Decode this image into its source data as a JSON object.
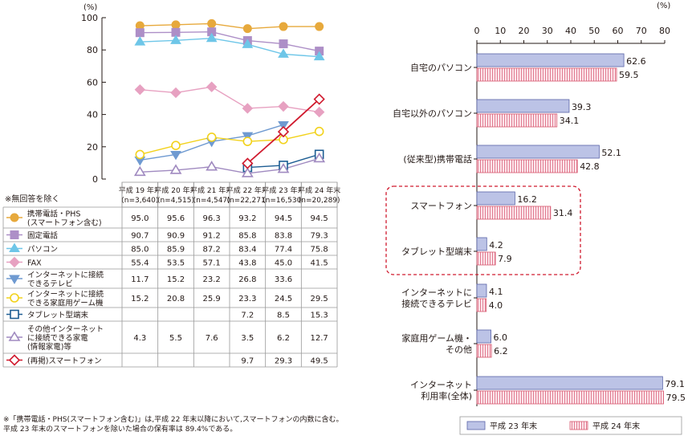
{
  "chart_data": [
    {
      "type": "line",
      "ylabel": "(%)",
      "ylim": [
        0,
        100
      ],
      "yticks": [
        0,
        20,
        40,
        60,
        80,
        100
      ],
      "categories": [
        "平成 19 年末",
        "平成 20 年末",
        "平成 21 年末",
        "平成 22 年末",
        "平成 23 年末",
        "平成 24 年末"
      ],
      "category_notes": [
        "(n=3,640)",
        "(n=4,515)",
        "(n=4,547)",
        "(n=22,271)",
        "(n=16,530)",
        "(n=20,289)"
      ],
      "note": "※無回答を除く",
      "grid": false,
      "series": [
        {
          "name": "携帯電話・PHS",
          "name2": "(スマートフォン含む)",
          "color": "#e7a93c",
          "marker": "circle-filled",
          "values": [
            95.0,
            95.6,
            96.3,
            93.2,
            94.5,
            94.5
          ],
          "labels": [
            "95.0",
            "95.6",
            "96.3",
            "93.2",
            "94.5",
            "94.5"
          ]
        },
        {
          "name": "固定電話",
          "color": "#ad8fc7",
          "marker": "square-filled",
          "values": [
            90.7,
            90.9,
            91.2,
            85.8,
            83.8,
            79.3
          ],
          "labels": [
            "90.7",
            "90.9",
            "91.2",
            "85.8",
            "83.8",
            "79.3"
          ]
        },
        {
          "name": "パソコン",
          "color": "#6ec6e8",
          "marker": "triangle-up-filled",
          "values": [
            85.0,
            85.9,
            87.2,
            83.4,
            77.4,
            75.8
          ],
          "labels": [
            "85.0",
            "85.9",
            "87.2",
            "83.4",
            "77.4",
            "75.8"
          ]
        },
        {
          "name": "FAX",
          "color": "#e7a1c1",
          "marker": "diamond-filled",
          "values": [
            55.4,
            53.5,
            57.1,
            43.8,
            45.0,
            41.5
          ],
          "labels": [
            "55.4",
            "53.5",
            "57.1",
            "43.8",
            "45.0",
            "41.5"
          ]
        },
        {
          "name": "インターネットに接続",
          "name2": "できるテレビ",
          "color": "#6f9ad1",
          "marker": "triangle-down-filled",
          "values": [
            11.7,
            15.2,
            23.2,
            26.8,
            33.6,
            null
          ],
          "labels": [
            "11.7",
            "15.2",
            "23.2",
            "26.8",
            "33.6",
            ""
          ]
        },
        {
          "name": "インターネットに接続",
          "name2": "できる家庭用ゲーム機",
          "color": "#f2d21c",
          "marker": "circle-open",
          "values": [
            15.2,
            20.8,
            25.9,
            23.3,
            24.5,
            29.5
          ],
          "labels": [
            "15.2",
            "20.8",
            "25.9",
            "23.3",
            "24.5",
            "29.5"
          ]
        },
        {
          "name": "タブレット型端末",
          "color": "#1d5d93",
          "marker": "square-open",
          "values": [
            null,
            null,
            null,
            7.2,
            8.5,
            15.3
          ],
          "labels": [
            "",
            "",
            "",
            "7.2",
            "8.5",
            "15.3"
          ]
        },
        {
          "name": "その他インターネット",
          "name2": "に接続できる家電",
          "name3": "(情報家電)等",
          "color": "#a08ac0",
          "marker": "triangle-up-open",
          "values": [
            4.3,
            5.5,
            7.6,
            3.5,
            6.2,
            12.7
          ],
          "labels": [
            "4.3",
            "5.5",
            "7.6",
            "3.5",
            "6.2",
            "12.7"
          ]
        },
        {
          "name": "(再掲)スマートフォン",
          "color": "#d01a2e",
          "marker": "diamond-open",
          "values": [
            null,
            null,
            null,
            9.7,
            29.3,
            49.5
          ],
          "labels": [
            "",
            "",
            "",
            "9.7",
            "29.3",
            "49.5"
          ]
        }
      ]
    },
    {
      "type": "bar",
      "orientation": "horizontal",
      "xlabel": "(%)",
      "xlim": [
        0,
        80
      ],
      "xticks": [
        0,
        10,
        20,
        30,
        40,
        50,
        60,
        70,
        80
      ],
      "legend_position": "bottom",
      "categories": [
        [
          "自宅のパソコン"
        ],
        [
          "自宅以外のパソコン"
        ],
        [
          "(従来型)携帯電話"
        ],
        [
          "スマートフォン"
        ],
        [
          "タブレット型端末"
        ],
        [
          "インターネットに",
          "接続できるテレビ"
        ],
        [
          "家庭用ゲーム機・",
          "その他"
        ],
        [
          "インターネット",
          "利用率(全体)"
        ]
      ],
      "highlighted_categories": [
        "スマートフォン",
        "タブレット型端末"
      ],
      "series": [
        {
          "name": "平成 23 年末",
          "color": "#bcc3e6",
          "values": [
            62.6,
            39.3,
            52.1,
            16.2,
            4.2,
            4.1,
            6.0,
            79.1
          ],
          "labels": [
            "62.6",
            "39.3",
            "52.1",
            "16.2",
            "4.2",
            "4.1",
            "6.0",
            "79.1"
          ]
        },
        {
          "name": "平成 24 年末",
          "color": "#f3b3c0",
          "values": [
            59.5,
            34.1,
            42.8,
            31.4,
            7.9,
            4.0,
            6.2,
            79.5
          ],
          "labels": [
            "59.5",
            "34.1",
            "42.8",
            "31.4",
            "7.9",
            "4.0",
            "6.2",
            "79.5"
          ]
        }
      ]
    }
  ],
  "footnotes": [
    "※「携帯電話・PHS(スマートフォン含む)」は,平成 22 年末以降において,スマートフォンの内数に含む。",
    "平成 23 年末のスマートフォンを除いた場合の保有率は 89.4%である。"
  ]
}
